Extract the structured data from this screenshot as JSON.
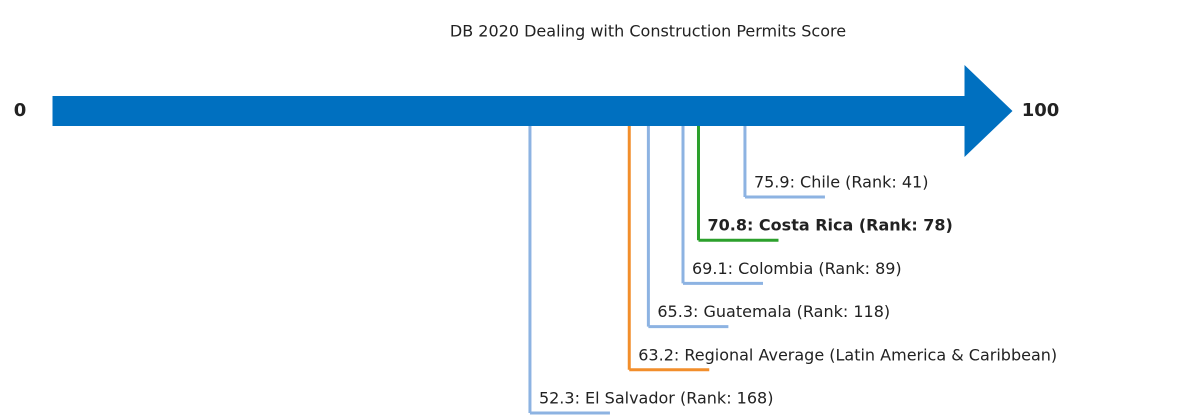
{
  "chart_data": {
    "type": "scale",
    "title": "DB 2020 Dealing with Construction Permits Score",
    "xlim": [
      0,
      100
    ],
    "xticks": [
      0,
      100
    ],
    "axis_color": "#0070c0",
    "categories": [
      "Chile",
      "Costa Rica",
      "Colombia",
      "Guatemala",
      "Regional Average (Latin America & Caribbean)",
      "El Salvador"
    ],
    "values": [
      75.9,
      70.8,
      69.1,
      65.3,
      63.2,
      52.3
    ],
    "value_labels": [
      "75.9: Chile (Rank: 41)",
      "70.8: Costa Rica (Rank: 78)",
      "69.1: Colombia (Rank: 89)",
      "65.3: Guatemala (Rank: 118)",
      "63.2: Regional Average (Latin America & Caribbean)",
      "52.3: El Salvador (Rank: 168)"
    ],
    "colors": [
      "#8db3e2",
      "#2ca02c",
      "#8db3e2",
      "#8db3e2",
      "#f28e2b",
      "#8db3e2"
    ],
    "highlight": [
      false,
      true,
      false,
      false,
      false,
      false
    ]
  }
}
